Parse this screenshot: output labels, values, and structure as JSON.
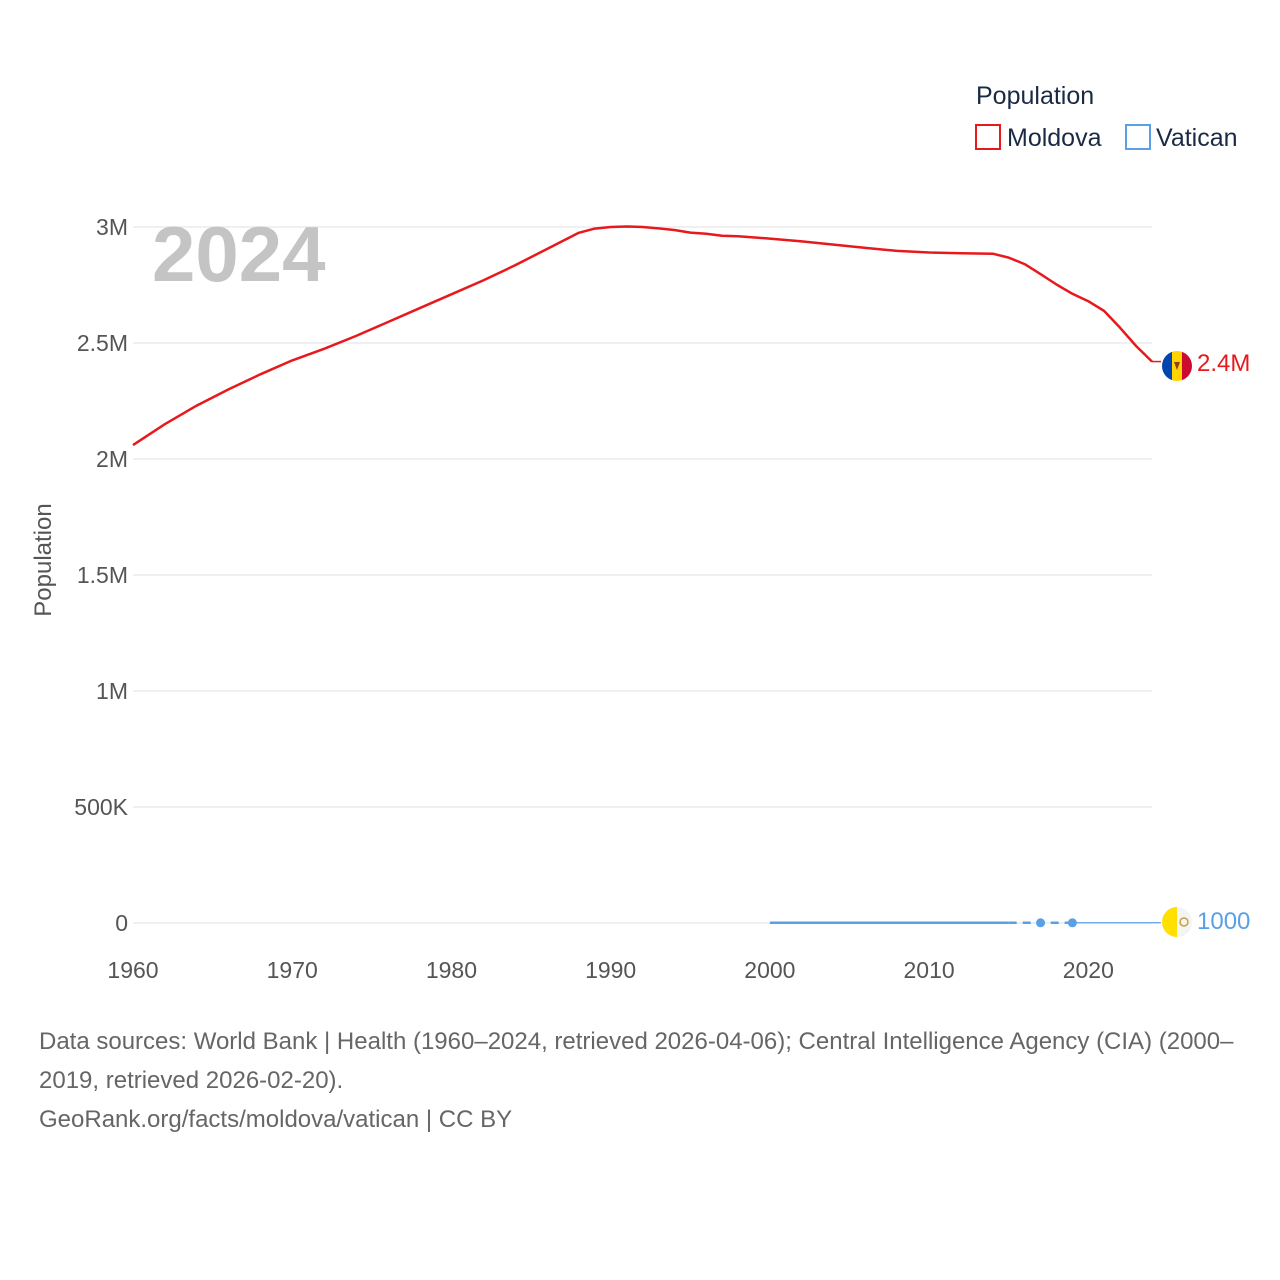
{
  "chart_data": {
    "type": "line",
    "title": "",
    "year_label": "2024",
    "ylabel": "Population",
    "xlabel": "",
    "xlim": [
      1960,
      2024
    ],
    "ylim": [
      0,
      3000000
    ],
    "x_ticks": [
      {
        "value": 1960,
        "label": "1960"
      },
      {
        "value": 1970,
        "label": "1970"
      },
      {
        "value": 1980,
        "label": "1980"
      },
      {
        "value": 1990,
        "label": "1990"
      },
      {
        "value": 2000,
        "label": "2000"
      },
      {
        "value": 2010,
        "label": "2010"
      },
      {
        "value": 2020,
        "label": "2020"
      }
    ],
    "y_ticks": [
      {
        "value": 0,
        "label": "0"
      },
      {
        "value": 500000,
        "label": "500K"
      },
      {
        "value": 1000000,
        "label": "1M"
      },
      {
        "value": 1500000,
        "label": "1.5M"
      },
      {
        "value": 2000000,
        "label": "2M"
      },
      {
        "value": 2500000,
        "label": "2.5M"
      },
      {
        "value": 3000000,
        "label": "3M"
      }
    ],
    "legend": {
      "title": "Population",
      "position": "top-right"
    },
    "series": [
      {
        "name": "Moldova",
        "color": "#e8191c",
        "end_label": "2.4M",
        "flag_icon": "moldova-flag-icon",
        "x": [
          1960,
          1962,
          1964,
          1966,
          1968,
          1970,
          1972,
          1974,
          1976,
          1978,
          1980,
          1982,
          1984,
          1986,
          1988,
          1989,
          1990,
          1991,
          1992,
          1993,
          1994,
          1995,
          1996,
          1997,
          1998,
          2000,
          2002,
          2004,
          2006,
          2008,
          2010,
          2012,
          2014,
          2015,
          2016,
          2017,
          2018,
          2019,
          2020,
          2021,
          2022,
          2023,
          2024
        ],
        "values": [
          2060000,
          2150000,
          2230000,
          2300000,
          2365000,
          2425000,
          2475000,
          2530000,
          2590000,
          2650000,
          2710000,
          2770000,
          2835000,
          2905000,
          2975000,
          2993000,
          3000000,
          3002000,
          3000000,
          2994000,
          2987000,
          2976000,
          2971000,
          2962000,
          2960000,
          2950000,
          2938000,
          2924000,
          2910000,
          2897000,
          2890000,
          2887000,
          2885000,
          2868000,
          2840000,
          2797000,
          2752000,
          2712000,
          2680000,
          2638000,
          2565000,
          2487000,
          2420000
        ]
      },
      {
        "name": "Vatican",
        "color": "#5aa0e6",
        "end_label": "1000",
        "flag_icon": "vatican-flag-icon",
        "x": [
          2000,
          2005,
          2010,
          2015,
          2017,
          2019,
          2024
        ],
        "values": [
          870,
          900,
          830,
          840,
          1000,
          1000,
          1000
        ]
      }
    ]
  },
  "footer": {
    "sources": "Data sources: World Bank | Health (1960–2024, retrieved 2026-04-06); Central Intelligence Agency (CIA) (2000–2019, retrieved 2026-02-20).",
    "credit": "GeoRank.org/facts/moldova/vatican | CC BY"
  }
}
